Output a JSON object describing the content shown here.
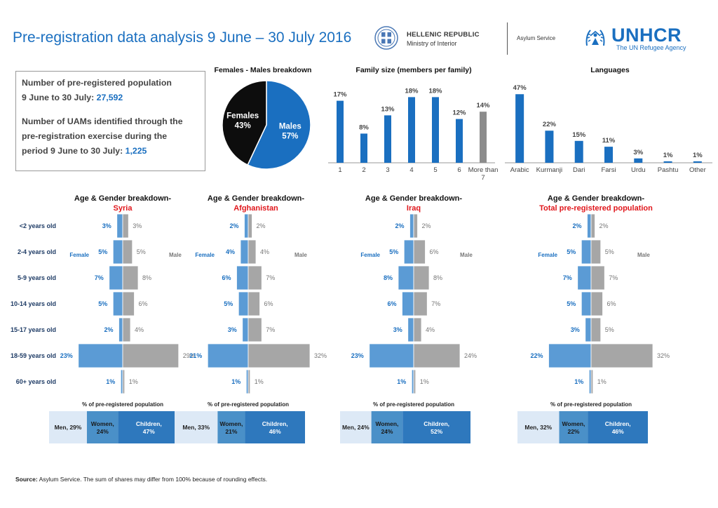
{
  "header": {
    "title": "Pre-registration data analysis 9 June – 30 July 2016",
    "gr_name": "HELLENIC REPUBLIC",
    "gr_ministry": "Ministry of Interior",
    "asylum_service": "Asylum Service",
    "unhcr_name": "UNHCR",
    "unhcr_sub": "The UN Refugee Agency"
  },
  "info": {
    "line1": "Number of pre-registered population",
    "line2": "9 June to 30 July:",
    "value1": "27,592",
    "line3": "Number of UAMs identified through the",
    "line4": "pre-registration exercise during the",
    "line5": "period 9 June to 30 July:",
    "value2": "1,225"
  },
  "colors": {
    "blue": "#1a6fc0",
    "grey": "#8c8c8c",
    "pyr_female": "#5b9bd5",
    "pyr_male": "#a6a6a6",
    "red": "#e0161b"
  },
  "source": {
    "label": "Source:",
    "text": "Asylum Service. The sum of shares may differ from 100% because of rounding effects."
  },
  "chart_data": [
    {
      "id": "pie",
      "type": "pie",
      "title": "Females - Males breakdown",
      "slices": [
        {
          "name": "Females",
          "value": 43,
          "label": "43%"
        },
        {
          "name": "Males",
          "value": 57,
          "label": "57%"
        }
      ]
    },
    {
      "id": "family",
      "type": "bar",
      "title": "Family size (members per family)",
      "categories": [
        "1",
        "2",
        "3",
        "4",
        "5",
        "6",
        "More than 7"
      ],
      "values": [
        17,
        8,
        13,
        18,
        18,
        12,
        14
      ],
      "labels": [
        "17%",
        "8%",
        "13%",
        "18%",
        "18%",
        "12%",
        "14%"
      ],
      "ylim": [
        0,
        20
      ]
    },
    {
      "id": "languages",
      "type": "bar",
      "title": "Languages",
      "categories": [
        "Arabic",
        "Kurmanji",
        "Dari",
        "Farsi",
        "Urdu",
        "Pashtu",
        "Other"
      ],
      "values": [
        47,
        22,
        15,
        11,
        3,
        1,
        1
      ],
      "labels": [
        "47%",
        "22%",
        "15%",
        "11%",
        "3%",
        "1%",
        "1%"
      ],
      "ylim": [
        0,
        50
      ]
    },
    {
      "id": "pyramids",
      "type": "bar",
      "title_prefix": "Age & Gender breakdown-",
      "age_groups": [
        "<2 years old",
        "2-4 years old",
        "5-9 years old",
        "10-14 years old",
        "15-17 years old",
        "18-59 years old",
        "60+ years old"
      ],
      "female_label": "Female",
      "male_label": "Male",
      "footer": "% of pre-registered population",
      "panels": [
        {
          "subtitle": "Syria",
          "female": [
            3,
            5,
            7,
            5,
            2,
            23,
            1
          ],
          "male": [
            3,
            5,
            8,
            6,
            4,
            29,
            1
          ],
          "segments": [
            {
              "label": "Men, 29%",
              "value": 29
            },
            {
              "label": "Women, 24%",
              "value": 24
            },
            {
              "label": "Children, 47%",
              "value": 47
            }
          ]
        },
        {
          "subtitle": "Afghanistan",
          "female": [
            2,
            4,
            6,
            5,
            3,
            21,
            1
          ],
          "male": [
            2,
            4,
            7,
            6,
            7,
            32,
            1
          ],
          "segments": [
            {
              "label": "Men, 33%",
              "value": 33
            },
            {
              "label": "Women, 21%",
              "value": 21
            },
            {
              "label": "Children, 46%",
              "value": 46
            }
          ]
        },
        {
          "subtitle": "Iraq",
          "female": [
            2,
            5,
            8,
            6,
            3,
            23,
            1
          ],
          "male": [
            2,
            6,
            8,
            7,
            4,
            24,
            1
          ],
          "segments": [
            {
              "label": "Men, 24%",
              "value": 24
            },
            {
              "label": "Women, 24%",
              "value": 24
            },
            {
              "label": "Children, 52%",
              "value": 52
            }
          ]
        },
        {
          "subtitle": "Total pre-registered population",
          "female": [
            2,
            5,
            7,
            5,
            3,
            22,
            1
          ],
          "male": [
            2,
            5,
            7,
            6,
            5,
            32,
            1
          ],
          "segments": [
            {
              "label": "Men, 32%",
              "value": 32
            },
            {
              "label": "Women, 22%",
              "value": 22
            },
            {
              "label": "Children, 46%",
              "value": 46
            }
          ]
        }
      ]
    }
  ]
}
